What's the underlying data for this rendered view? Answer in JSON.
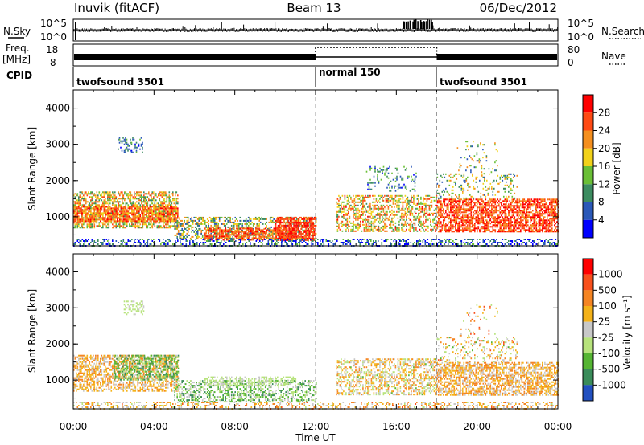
{
  "header": {
    "station": "Inuvik (fitACF)",
    "beam": "Beam 13",
    "date": "06/Dec/2012"
  },
  "strips": {
    "nsky_label": "N.Sky",
    "nsky_ticks": [
      "10^5",
      "10^0"
    ],
    "nsearch_label": "N.Search",
    "nsearch_ticks": [
      "10^5",
      "10^0"
    ],
    "freq_label_1": "Freq.",
    "freq_label_2": "[MHz]",
    "freq_ticks": [
      "18",
      "8"
    ],
    "nave_label": "Nave",
    "nave_ticks": [
      "80",
      "0"
    ],
    "cpid_label": "CPID",
    "modes": [
      {
        "label": "twofsound 3501",
        "start_hour": 0
      },
      {
        "label": "normal 150",
        "start_hour": 12
      },
      {
        "label": "twofsound 3501",
        "start_hour": 18
      }
    ]
  },
  "chart_data": [
    {
      "type": "heatmap",
      "title": "",
      "ylabel": "Slant Range [km]",
      "yticks": [
        "1000",
        "2000",
        "3000",
        "4000"
      ],
      "ylim": [
        200,
        4500
      ],
      "xlim": [
        0,
        24
      ],
      "colorbar_label": "Power [dB]",
      "colorbar_ticks": [
        "4",
        "8",
        "12",
        "16",
        "20",
        "24",
        "28"
      ],
      "colorbar_colors": [
        "#0000ff",
        "#2a58b8",
        "#3c8c60",
        "#6abf36",
        "#f2d21a",
        "#f58f1e",
        "#ff4a14",
        "#ff0000"
      ]
    },
    {
      "type": "heatmap",
      "title": "",
      "ylabel": "Slant Range [km]",
      "yticks": [
        "1000",
        "2000",
        "3000",
        "4000"
      ],
      "ylim": [
        200,
        4500
      ],
      "xlim": [
        0,
        24
      ],
      "colorbar_label": "Velocity [m s⁻¹]",
      "colorbar_ticks": [
        "1000",
        "500",
        "100",
        "25",
        "-25",
        "-100",
        "-500",
        "-1000"
      ],
      "colorbar_colors": [
        "#2250c0",
        "#3a8c5a",
        "#55b533",
        "#b7e37c",
        "#c8c8c8",
        "#f4b219",
        "#f58523",
        "#f8501c",
        "#ff0000"
      ]
    }
  ],
  "xaxis": {
    "label": "Time UT",
    "ticks": [
      "00:00",
      "04:00",
      "08:00",
      "12:00",
      "16:00",
      "20:00",
      "00:00"
    ]
  }
}
